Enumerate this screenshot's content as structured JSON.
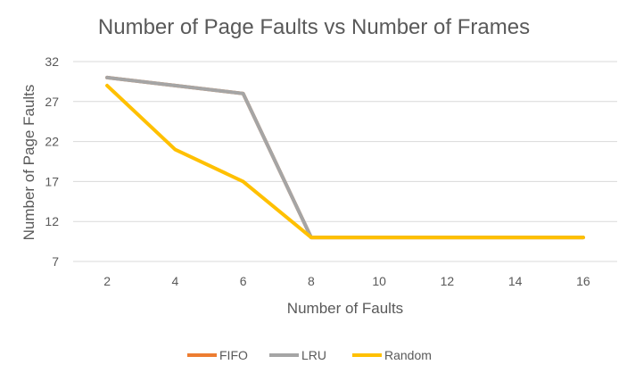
{
  "chart_data": {
    "type": "line",
    "title": "Number of Page Faults vs Number of Frames",
    "xlabel": "Number of Faults",
    "ylabel": "Number of Page Faults",
    "categories": [
      "2",
      "4",
      "6",
      "8",
      "10",
      "12",
      "14",
      "16"
    ],
    "ylim": [
      7,
      32
    ],
    "yticks": [
      7,
      12,
      17,
      22,
      27,
      32
    ],
    "grid": true,
    "legend_position": "bottom",
    "series": [
      {
        "name": "FIFO",
        "color": "#ED7D31",
        "values": [
          30,
          29,
          28,
          10,
          10,
          10,
          10,
          10
        ]
      },
      {
        "name": "LRU",
        "color": "#A5A5A5",
        "values": [
          30,
          29,
          28,
          10,
          10,
          10,
          10,
          10
        ]
      },
      {
        "name": "Random",
        "color": "#FFC000",
        "values": [
          29,
          21,
          17,
          10,
          10,
          10,
          10,
          10
        ]
      }
    ]
  }
}
